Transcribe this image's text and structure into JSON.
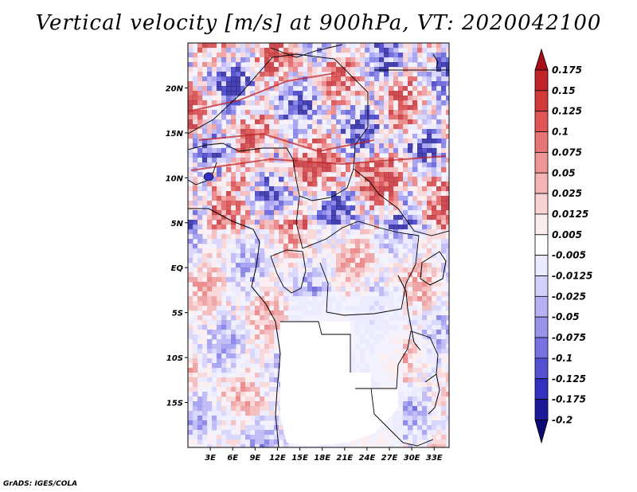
{
  "title": "Vertical velocity [m/s] at 900hPa, VT: 2020042100",
  "footer": "GrADS: IGES/COLA",
  "map": {
    "lon_range": [
      0,
      35
    ],
    "lat_range": [
      -20,
      25
    ],
    "lon_ticks": [
      {
        "value": 3,
        "label": "3E"
      },
      {
        "value": 6,
        "label": "6E"
      },
      {
        "value": 9,
        "label": "9E"
      },
      {
        "value": 12,
        "label": "12E"
      },
      {
        "value": 15,
        "label": "15E"
      },
      {
        "value": 18,
        "label": "18E"
      },
      {
        "value": 21,
        "label": "21E"
      },
      {
        "value": 24,
        "label": "24E"
      },
      {
        "value": 27,
        "label": "27E"
      },
      {
        "value": 30,
        "label": "30E"
      },
      {
        "value": 33,
        "label": "33E"
      }
    ],
    "lat_ticks": [
      {
        "value": 20,
        "label": "20N"
      },
      {
        "value": 15,
        "label": "15N"
      },
      {
        "value": 10,
        "label": "10N"
      },
      {
        "value": 5,
        "label": "5N"
      },
      {
        "value": 0,
        "label": "EQ"
      },
      {
        "value": -5,
        "label": "5S"
      },
      {
        "value": -10,
        "label": "10S"
      },
      {
        "value": -15,
        "label": "15S"
      }
    ]
  },
  "colorbar": {
    "labels": [
      "0.175",
      "0.15",
      "0.125",
      "0.1",
      "0.075",
      "0.05",
      "0.025",
      "0.0125",
      "0.005",
      "-0.005",
      "-0.0125",
      "-0.025",
      "-0.05",
      "-0.075",
      "-0.1",
      "-0.125",
      "-0.175",
      "-0.2"
    ],
    "colors": [
      "#a50f15",
      "#c0252a",
      "#d23a3a",
      "#e05555",
      "#e87575",
      "#ee9595",
      "#f4b4b4",
      "#f9d3d3",
      "#fdeeee",
      "#ffffff",
      "#ebeaff",
      "#d3d1fb",
      "#b6b2f4",
      "#9894ec",
      "#7773e2",
      "#5551d3",
      "#3330bf",
      "#1c189a",
      "#0c0a72"
    ]
  }
}
